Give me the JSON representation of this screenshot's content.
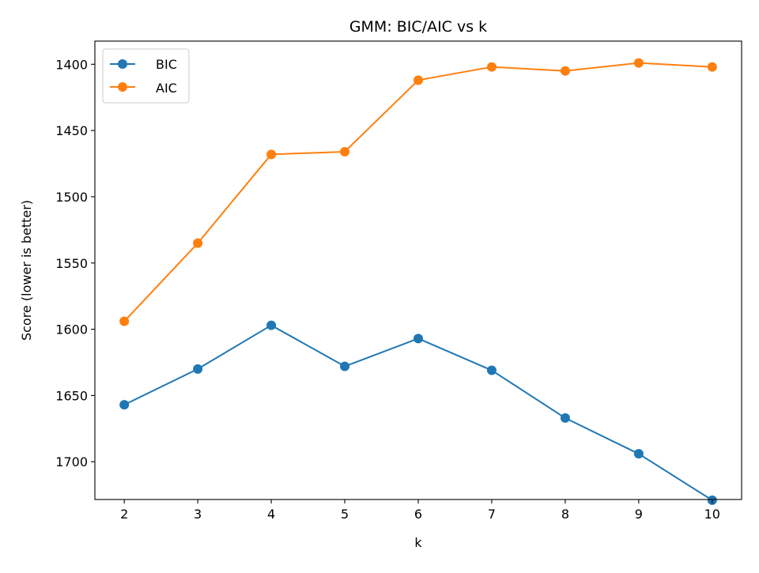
{
  "chart_data": {
    "type": "line",
    "title": "GMM: BIC/AIC vs k",
    "xlabel": "k",
    "ylabel": "Score (lower is better)",
    "x": [
      2,
      3,
      4,
      5,
      6,
      7,
      8,
      9,
      10
    ],
    "xticks": [
      "2",
      "3",
      "4",
      "5",
      "6",
      "7",
      "8",
      "9",
      "10"
    ],
    "yticks": [
      1400,
      1450,
      1500,
      1550,
      1600,
      1650,
      1700
    ],
    "ytick_labels": [
      "1400",
      "1450",
      "1500",
      "1550",
      "1600",
      "1650",
      "1700"
    ],
    "xlim": [
      1.6,
      10.4
    ],
    "ylim": [
      1728.5,
      1382.5
    ],
    "y_inverted": true,
    "grid": false,
    "legend_position": "top-left",
    "series": [
      {
        "name": "BIC",
        "color": "#1f77b4",
        "marker": "circle",
        "values": [
          1657,
          1630,
          1597,
          1628,
          1607,
          1631,
          1667,
          1694,
          1729
        ]
      },
      {
        "name": "AIC",
        "color": "#ff7f0e",
        "marker": "circle",
        "values": [
          1594,
          1535,
          1468,
          1466,
          1412,
          1402,
          1405,
          1399,
          1402
        ]
      }
    ]
  }
}
